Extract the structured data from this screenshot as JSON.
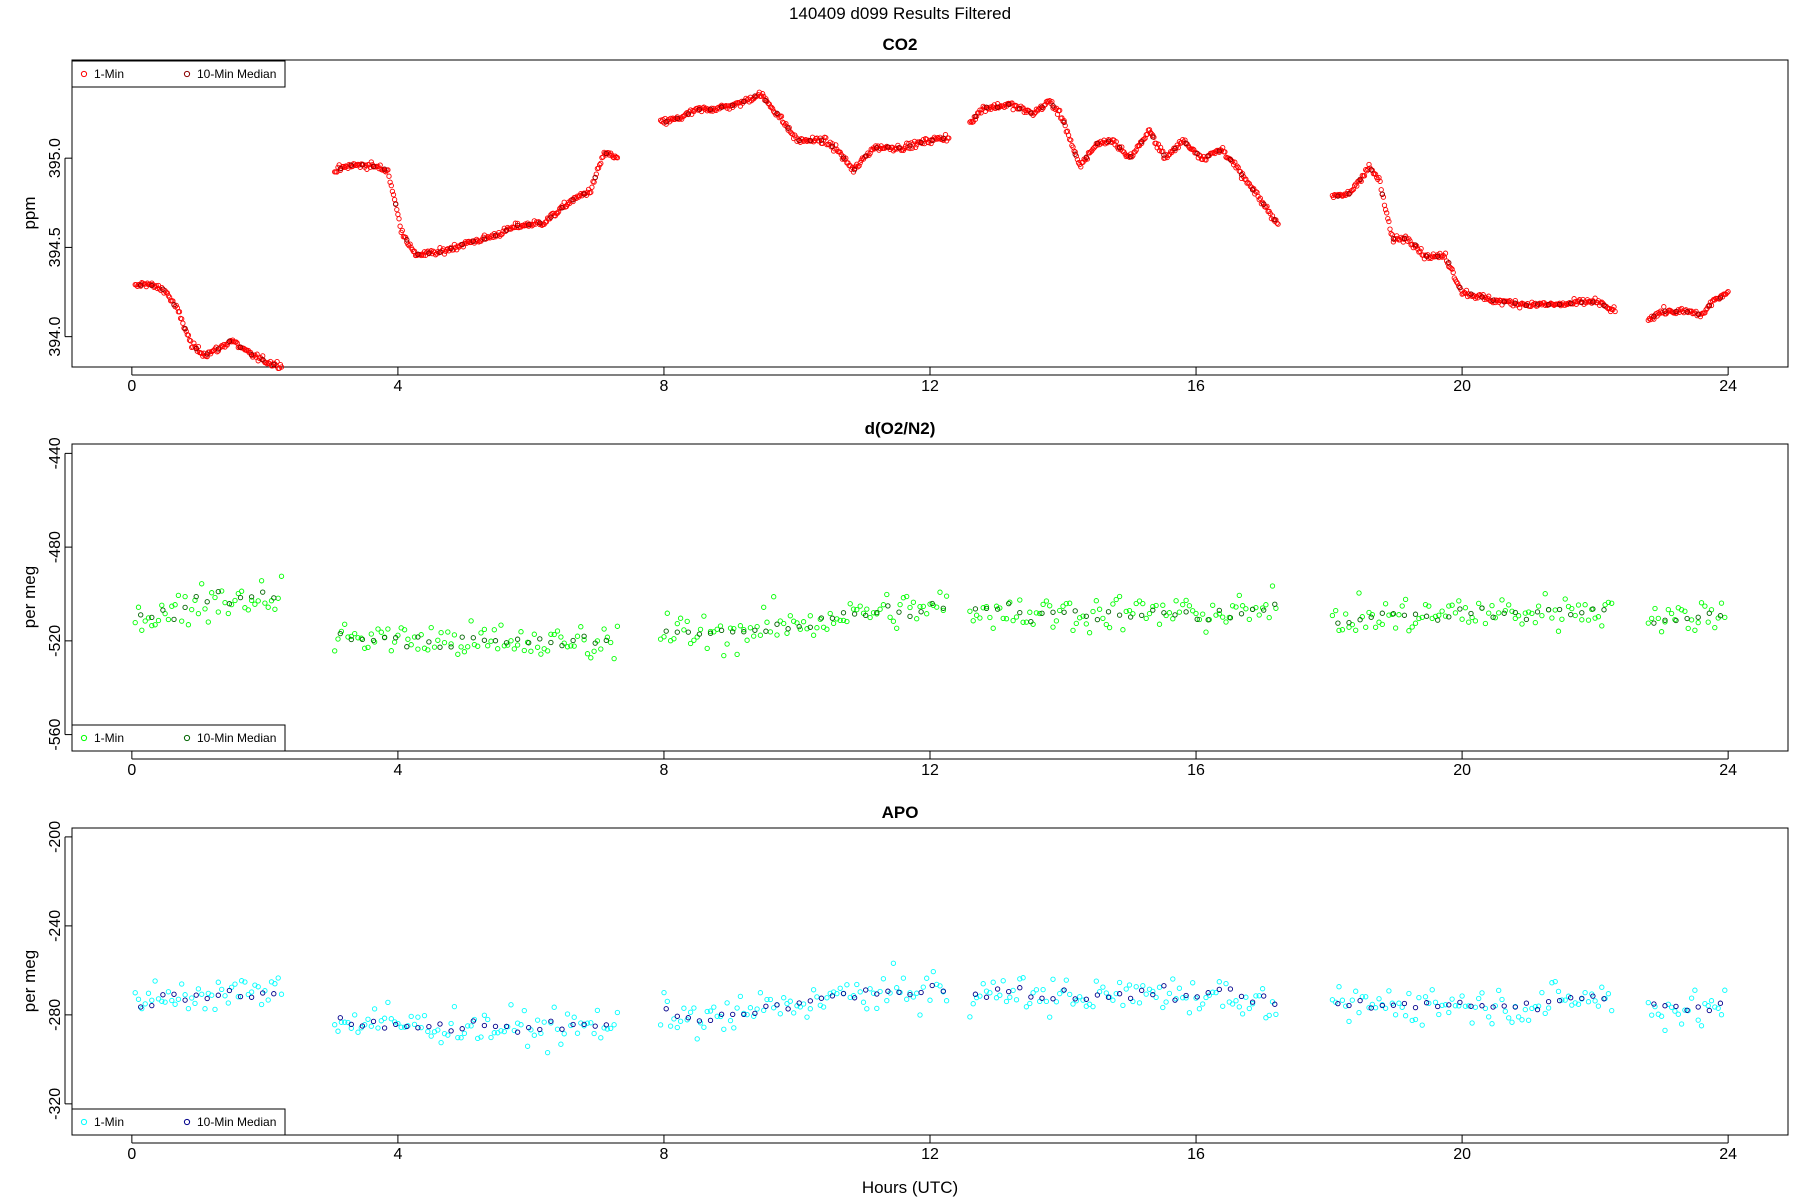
{
  "title": "140409   d099   Results Filtered",
  "xlabel": "Hours (UTC)",
  "chart_data": [
    {
      "type": "scatter",
      "title": "CO2",
      "ylabel": "ppm",
      "xlim": [
        -0.9,
        24.9
      ],
      "ylim": [
        393.83,
        395.55
      ],
      "xticks": [
        0,
        4,
        8,
        12,
        16,
        20,
        24
      ],
      "xtick_labels": [
        "0",
        "4",
        "8",
        "12",
        "16",
        "20",
        "24"
      ],
      "yticks": [
        394.0,
        394.5,
        395.0
      ],
      "ytick_labels": [
        "394.0",
        "394.5",
        "395.0"
      ],
      "legend_position": "top-left",
      "noise": 0.015,
      "series": [
        {
          "name": "1-Min",
          "color": "#ff0000",
          "role": "minute",
          "segments": [
            [
              [
                0.05,
                394.28
              ],
              [
                0.2,
                394.3
              ],
              [
                0.5,
                394.26
              ],
              [
                0.7,
                394.14
              ],
              [
                0.9,
                393.95
              ],
              [
                1.1,
                393.9
              ],
              [
                1.3,
                393.93
              ],
              [
                1.5,
                393.98
              ],
              [
                1.7,
                393.92
              ],
              [
                1.9,
                393.88
              ],
              [
                2.1,
                393.85
              ],
              [
                2.25,
                393.84
              ]
            ],
            [
              [
                3.05,
                394.93
              ],
              [
                3.3,
                394.96
              ],
              [
                3.6,
                394.96
              ],
              [
                3.85,
                394.93
              ],
              [
                4.05,
                394.6
              ],
              [
                4.25,
                394.46
              ],
              [
                4.6,
                394.47
              ],
              [
                5.0,
                394.52
              ],
              [
                5.4,
                394.56
              ],
              [
                5.8,
                394.62
              ],
              [
                6.2,
                394.64
              ],
              [
                6.6,
                394.76
              ],
              [
                6.9,
                394.82
              ],
              [
                7.1,
                395.03
              ],
              [
                7.3,
                395.0
              ]
            ],
            [
              [
                7.95,
                395.2
              ],
              [
                8.2,
                395.22
              ],
              [
                8.5,
                395.27
              ],
              [
                8.8,
                395.28
              ],
              [
                9.1,
                395.3
              ],
              [
                9.45,
                395.36
              ],
              [
                9.7,
                395.25
              ],
              [
                10.0,
                395.1
              ],
              [
                10.4,
                395.1
              ],
              [
                10.6,
                395.05
              ],
              [
                10.85,
                394.93
              ],
              [
                11.15,
                395.06
              ],
              [
                11.6,
                395.06
              ],
              [
                12.0,
                395.1
              ],
              [
                12.3,
                395.12
              ]
            ],
            [
              [
                12.6,
                395.2
              ],
              [
                12.8,
                395.28
              ],
              [
                13.2,
                395.3
              ],
              [
                13.55,
                395.25
              ],
              [
                13.8,
                395.32
              ],
              [
                14.0,
                395.22
              ],
              [
                14.25,
                394.95
              ],
              [
                14.5,
                395.08
              ],
              [
                14.75,
                395.1
              ],
              [
                15.0,
                395.0
              ],
              [
                15.3,
                395.15
              ],
              [
                15.55,
                395.0
              ],
              [
                15.8,
                395.1
              ],
              [
                16.1,
                395.0
              ],
              [
                16.4,
                395.05
              ],
              [
                16.7,
                394.9
              ],
              [
                17.0,
                394.75
              ],
              [
                17.25,
                394.62
              ]
            ],
            [
              [
                18.05,
                394.78
              ],
              [
                18.3,
                394.8
              ],
              [
                18.6,
                394.95
              ],
              [
                18.75,
                394.88
              ],
              [
                18.95,
                394.55
              ],
              [
                19.2,
                394.55
              ],
              [
                19.45,
                394.45
              ],
              [
                19.75,
                394.45
              ],
              [
                20.0,
                394.25
              ],
              [
                20.5,
                394.2
              ],
              [
                21.0,
                394.18
              ],
              [
                21.5,
                394.18
              ],
              [
                22.0,
                394.2
              ],
              [
                22.3,
                394.14
              ]
            ],
            [
              [
                22.8,
                394.1
              ],
              [
                23.0,
                394.14
              ],
              [
                23.4,
                394.14
              ],
              [
                23.6,
                394.12
              ],
              [
                23.8,
                394.21
              ],
              [
                24.0,
                394.24
              ]
            ]
          ]
        },
        {
          "name": "10-Min Median",
          "color": "#8b0000",
          "role": "median"
        }
      ]
    },
    {
      "type": "scatter",
      "title": "d(O2/N2)",
      "ylabel": "per meg",
      "xlim": [
        -0.9,
        24.9
      ],
      "ylim": [
        -567,
        -436
      ],
      "xticks": [
        0,
        4,
        8,
        12,
        16,
        20,
        24
      ],
      "xtick_labels": [
        "0",
        "4",
        "8",
        "12",
        "16",
        "20",
        "24"
      ],
      "yticks": [
        -440,
        -480,
        -520,
        -560
      ],
      "ytick_labels": [
        "-440",
        "-480",
        "-520",
        "-560"
      ],
      "legend_position": "bottom-left",
      "noise": 7,
      "series": [
        {
          "name": "1-Min",
          "color": "#00ff00",
          "role": "minute",
          "segments": [
            [
              [
                0.05,
                -510
              ],
              [
                0.6,
                -508
              ],
              [
                1.0,
                -503
              ],
              [
                1.5,
                -502
              ],
              [
                2.0,
                -501
              ],
              [
                2.25,
                -500
              ]
            ],
            [
              [
                3.05,
                -518
              ],
              [
                3.5,
                -518
              ],
              [
                4.0,
                -519
              ],
              [
                4.5,
                -520
              ],
              [
                5.0,
                -520
              ],
              [
                5.5,
                -521
              ],
              [
                6.0,
                -521
              ],
              [
                6.5,
                -521
              ],
              [
                7.0,
                -520
              ],
              [
                7.3,
                -519
              ]
            ],
            [
              [
                7.95,
                -516
              ],
              [
                8.5,
                -517
              ],
              [
                9.0,
                -517
              ],
              [
                9.5,
                -514
              ],
              [
                10.0,
                -513
              ],
              [
                10.5,
                -510
              ],
              [
                11.0,
                -508
              ],
              [
                11.5,
                -507
              ],
              [
                12.0,
                -506
              ],
              [
                12.3,
                -505
              ]
            ],
            [
              [
                12.6,
                -506
              ],
              [
                13.5,
                -508
              ],
              [
                14.5,
                -508
              ],
              [
                15.5,
                -508
              ],
              [
                16.5,
                -508
              ],
              [
                17.25,
                -507
              ]
            ],
            [
              [
                18.05,
                -511
              ],
              [
                19.0,
                -510
              ],
              [
                20.0,
                -508
              ],
              [
                21.0,
                -508
              ],
              [
                22.0,
                -506
              ],
              [
                22.3,
                -507
              ]
            ],
            [
              [
                22.8,
                -510
              ],
              [
                23.4,
                -510
              ],
              [
                24.0,
                -508
              ]
            ]
          ]
        },
        {
          "name": "10-Min Median",
          "color": "#006400",
          "role": "median"
        }
      ]
    },
    {
      "type": "scatter",
      "title": "APO",
      "ylabel": "per meg",
      "xlim": [
        -0.9,
        24.9
      ],
      "ylim": [
        -334,
        -196
      ],
      "xticks": [
        0,
        4,
        8,
        12,
        16,
        20,
        24
      ],
      "xtick_labels": [
        "0",
        "4",
        "8",
        "12",
        "16",
        "20",
        "24"
      ],
      "yticks": [
        -200,
        -240,
        -280,
        -320
      ],
      "ytick_labels": [
        "-200",
        "-240",
        "-280",
        "-320"
      ],
      "legend_position": "bottom-left",
      "noise": 7,
      "series": [
        {
          "name": "1-Min",
          "color": "#00ffff",
          "role": "minute",
          "segments": [
            [
              [
                0.05,
                -276
              ],
              [
                0.6,
                -272
              ],
              [
                1.0,
                -271
              ],
              [
                1.5,
                -270
              ],
              [
                2.0,
                -270
              ],
              [
                2.25,
                -270
              ]
            ],
            [
              [
                3.05,
                -285
              ],
              [
                3.5,
                -283
              ],
              [
                4.0,
                -284
              ],
              [
                4.5,
                -285
              ],
              [
                5.0,
                -285
              ],
              [
                5.5,
                -286
              ],
              [
                6.0,
                -286
              ],
              [
                6.5,
                -286
              ],
              [
                7.0,
                -285
              ],
              [
                7.3,
                -283
              ]
            ],
            [
              [
                7.95,
                -280
              ],
              [
                8.5,
                -282
              ],
              [
                9.0,
                -281
              ],
              [
                9.5,
                -277
              ],
              [
                10.0,
                -275
              ],
              [
                10.5,
                -272
              ],
              [
                11.0,
                -271
              ],
              [
                11.5,
                -270
              ],
              [
                12.0,
                -268
              ],
              [
                12.3,
                -268
              ]
            ],
            [
              [
                12.6,
                -270
              ],
              [
                13.5,
                -271
              ],
              [
                14.5,
                -272
              ],
              [
                15.5,
                -270
              ],
              [
                16.5,
                -272
              ],
              [
                17.25,
                -274
              ]
            ],
            [
              [
                18.05,
                -276
              ],
              [
                19.0,
                -275
              ],
              [
                20.0,
                -275
              ],
              [
                21.0,
                -276
              ],
              [
                22.0,
                -272
              ],
              [
                22.3,
                -274
              ]
            ],
            [
              [
                22.8,
                -276
              ],
              [
                23.4,
                -278
              ],
              [
                24.0,
                -276
              ]
            ]
          ]
        },
        {
          "name": "10-Min Median",
          "color": "#00008b",
          "role": "median"
        }
      ]
    }
  ]
}
